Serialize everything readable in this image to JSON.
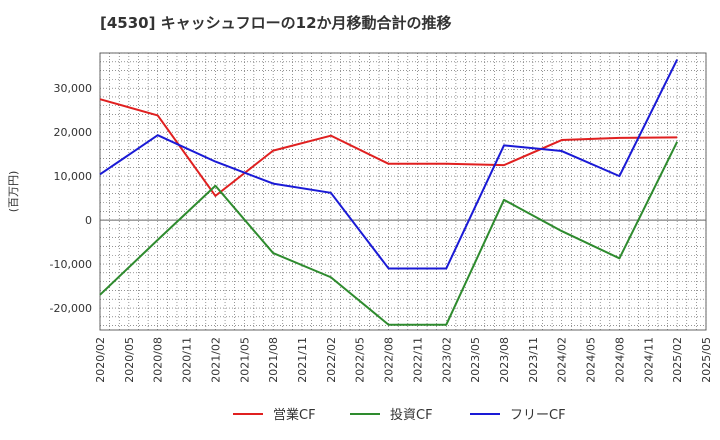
{
  "chart_data": {
    "type": "line",
    "title": "[4530]  キャッシュフローの12か月移動合計の推移",
    "ylabel": "(百万円)",
    "xlabel": "",
    "ylim": [
      -25000,
      38000
    ],
    "yticks": [
      -20000,
      -10000,
      0,
      10000,
      20000,
      30000
    ],
    "ytick_labels": [
      "-20,000",
      "-10,000",
      "0",
      "10,000",
      "20,000",
      "30,000"
    ],
    "x_categories": [
      "2020/02",
      "2020/05",
      "2020/08",
      "2020/11",
      "2021/02",
      "2021/05",
      "2021/08",
      "2021/11",
      "2022/02",
      "2022/05",
      "2022/08",
      "2022/11",
      "2023/02",
      "2023/05",
      "2023/08",
      "2023/11",
      "2024/02",
      "2024/05",
      "2024/08",
      "2024/11",
      "2025/02",
      "2025/05"
    ],
    "grid": true,
    "legend_position": "bottom",
    "series": [
      {
        "name": "営業CF",
        "color": "#e02020",
        "points": [
          [
            "2020/02",
            27500
          ],
          [
            "2020/08",
            23800
          ],
          [
            "2021/02",
            5500
          ],
          [
            "2021/08",
            15800
          ],
          [
            "2022/02",
            19200
          ],
          [
            "2022/08",
            12800
          ],
          [
            "2023/02",
            12800
          ],
          [
            "2023/08",
            12500
          ],
          [
            "2024/02",
            18200
          ],
          [
            "2024/08",
            18700
          ],
          [
            "2025/02",
            18800
          ]
        ]
      },
      {
        "name": "投資CF",
        "color": "#2e8b2e",
        "points": [
          [
            "2020/02",
            -17000
          ],
          [
            "2020/08",
            -4500
          ],
          [
            "2021/02",
            7800
          ],
          [
            "2021/08",
            -7500
          ],
          [
            "2022/02",
            -13000
          ],
          [
            "2022/08",
            -23800
          ],
          [
            "2023/02",
            -23800
          ],
          [
            "2023/08",
            4600
          ],
          [
            "2024/02",
            -2500
          ],
          [
            "2024/08",
            -8700
          ],
          [
            "2025/02",
            17800
          ]
        ]
      },
      {
        "name": "フリーCF",
        "color": "#1a1ad6",
        "points": [
          [
            "2020/02",
            10400
          ],
          [
            "2020/08",
            19300
          ],
          [
            "2021/02",
            13300
          ],
          [
            "2021/08",
            8300
          ],
          [
            "2022/02",
            6200
          ],
          [
            "2022/08",
            -11000
          ],
          [
            "2023/02",
            -11000
          ],
          [
            "2023/08",
            17000
          ],
          [
            "2024/02",
            15700
          ],
          [
            "2024/08",
            10000
          ],
          [
            "2025/02",
            36500
          ]
        ]
      }
    ]
  }
}
